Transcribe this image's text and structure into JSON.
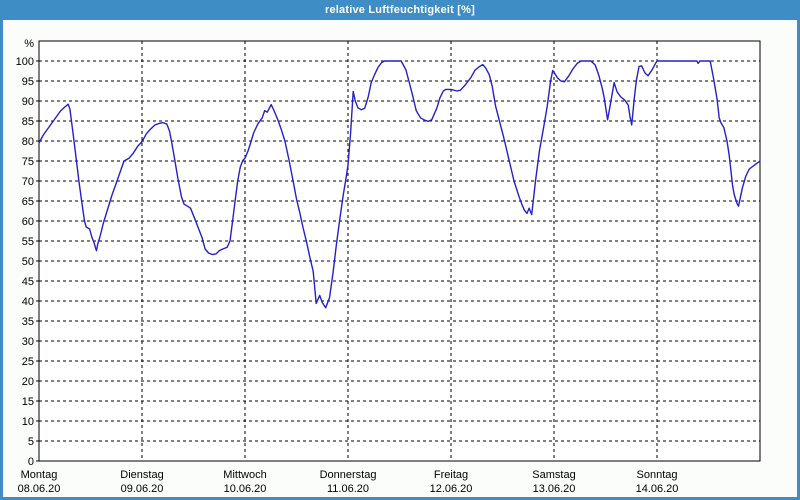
{
  "window": {
    "title": "relative Luftfeuchtigkeit [%]"
  },
  "chart_data": {
    "type": "line",
    "title": "relative Luftfeuchtigkeit [%]",
    "unit_label": "%",
    "legend": "none",
    "grid": "dashed",
    "y_axis": {
      "min": 0,
      "max": 105,
      "tick_step": 5
    },
    "y_ticks": [
      0,
      5,
      10,
      15,
      20,
      25,
      30,
      35,
      40,
      45,
      50,
      55,
      60,
      65,
      70,
      75,
      80,
      85,
      90,
      95,
      100
    ],
    "x_axis_range_hours": [
      0,
      168
    ],
    "x_labels": [
      {
        "day": "Montag",
        "date": "08.06.20",
        "hour": 0
      },
      {
        "day": "Dienstag",
        "date": "09.06.20",
        "hour": 24
      },
      {
        "day": "Mittwoch",
        "date": "10.06.20",
        "hour": 48
      },
      {
        "day": "Donnerstag",
        "date": "11.06.20",
        "hour": 72
      },
      {
        "day": "Freitag",
        "date": "12.06.20",
        "hour": 96
      },
      {
        "day": "Samstag",
        "date": "13.06.20",
        "hour": 120
      },
      {
        "day": "Sonntag",
        "date": "14.06.20",
        "hour": 144
      }
    ],
    "colors": {
      "titlebar": "#3e8ec5",
      "frame": "#3e8ec5",
      "background": "#fbfdfa",
      "plot_background": "#ffffff",
      "grid": "#000000",
      "axis": "#000000",
      "text": "#000000",
      "line": "#2222c8"
    },
    "series": [
      {
        "name": "relative Luftfeuchtigkeit",
        "points": [
          [
            0,
            79.5
          ],
          [
            1,
            81.5
          ],
          [
            2,
            83
          ],
          [
            3,
            84.5
          ],
          [
            4,
            86
          ],
          [
            5,
            87.5
          ],
          [
            6,
            88.5
          ],
          [
            6.8,
            89.2
          ],
          [
            7.2,
            88
          ],
          [
            7.8,
            83
          ],
          [
            8.5,
            77
          ],
          [
            9.3,
            70
          ],
          [
            10,
            64.5
          ],
          [
            10.6,
            60
          ],
          [
            11,
            58.5
          ],
          [
            11.8,
            58
          ],
          [
            12.3,
            56
          ],
          [
            12.9,
            54.3
          ],
          [
            13.2,
            53.2
          ],
          [
            13.4,
            52.6
          ],
          [
            13.7,
            54.3
          ],
          [
            14.2,
            56
          ],
          [
            15,
            59.5
          ],
          [
            16,
            63
          ],
          [
            17,
            66.5
          ],
          [
            18,
            69.5
          ],
          [
            19,
            72.5
          ],
          [
            19.8,
            75
          ],
          [
            21,
            75.7
          ],
          [
            22,
            77
          ],
          [
            23,
            78.7
          ],
          [
            24,
            79.8
          ],
          [
            25,
            81.8
          ],
          [
            26,
            83
          ],
          [
            27,
            84
          ],
          [
            28,
            84.4
          ],
          [
            28.9,
            84.6
          ],
          [
            29.8,
            84.2
          ],
          [
            30.4,
            82.5
          ],
          [
            30.9,
            79.8
          ],
          [
            31.6,
            75.5
          ],
          [
            32.4,
            70.5
          ],
          [
            33.2,
            66
          ],
          [
            33.8,
            64.2
          ],
          [
            34.6,
            63.7
          ],
          [
            35.3,
            63.2
          ],
          [
            36.2,
            60.8
          ],
          [
            37.2,
            58
          ],
          [
            38,
            55.8
          ],
          [
            38.7,
            53
          ],
          [
            39.5,
            52
          ],
          [
            40.5,
            51.6
          ],
          [
            41.3,
            51.8
          ],
          [
            42,
            52.6
          ],
          [
            42.8,
            53
          ],
          [
            43.8,
            53.4
          ],
          [
            44.5,
            55
          ],
          [
            45.1,
            60
          ],
          [
            45.7,
            65
          ],
          [
            46.3,
            70
          ],
          [
            46.9,
            73.5
          ],
          [
            47.5,
            75.2
          ],
          [
            48,
            75.7
          ],
          [
            48.7,
            77.5
          ],
          [
            49.3,
            79.5
          ],
          [
            50,
            82
          ],
          [
            51,
            84.3
          ],
          [
            52,
            85.8
          ],
          [
            52.6,
            87.6
          ],
          [
            53.2,
            87.2
          ],
          [
            54.1,
            89.1
          ],
          [
            54.8,
            87.5
          ],
          [
            55.7,
            85.2
          ],
          [
            56.5,
            82.7
          ],
          [
            57.3,
            80
          ],
          [
            58.2,
            75.5
          ],
          [
            59.2,
            70
          ],
          [
            60,
            65.5
          ],
          [
            60.7,
            62.4
          ],
          [
            61.5,
            58.5
          ],
          [
            62.3,
            54.9
          ],
          [
            63.1,
            51
          ],
          [
            63.9,
            47.4
          ],
          [
            64.6,
            39.4
          ],
          [
            65.4,
            41.4
          ],
          [
            66,
            39.6
          ],
          [
            66.8,
            38.3
          ],
          [
            67.7,
            40.8
          ],
          [
            68.5,
            47
          ],
          [
            69.3,
            54.1
          ],
          [
            70.1,
            60.5
          ],
          [
            70.9,
            66.6
          ],
          [
            71.5,
            70.5
          ],
          [
            72,
            74
          ],
          [
            72.6,
            82
          ],
          [
            73.2,
            92.4
          ],
          [
            73.7,
            90
          ],
          [
            74.3,
            88.3
          ],
          [
            75.1,
            87.8
          ],
          [
            75.9,
            88.2
          ],
          [
            76.7,
            91
          ],
          [
            77.4,
            94.6
          ],
          [
            78.2,
            96.6
          ],
          [
            79,
            98.4
          ],
          [
            79.8,
            99.6
          ],
          [
            80.5,
            100
          ],
          [
            84.4,
            100
          ],
          [
            85.5,
            97.8
          ],
          [
            86.3,
            94.5
          ],
          [
            87.1,
            91.2
          ],
          [
            87.9,
            87.6
          ],
          [
            88.9,
            85.8
          ],
          [
            89.9,
            85.2
          ],
          [
            90.7,
            84.9
          ],
          [
            91.5,
            85.3
          ],
          [
            92.7,
            88.2
          ],
          [
            93.4,
            90.7
          ],
          [
            94.2,
            92.5
          ],
          [
            94.8,
            92.9
          ],
          [
            96,
            92.9
          ],
          [
            97.4,
            92.5
          ],
          [
            98.2,
            92.7
          ],
          [
            99.3,
            94
          ],
          [
            100.6,
            95.8
          ],
          [
            101.6,
            97.7
          ],
          [
            102.6,
            98.6
          ],
          [
            103.4,
            99.1
          ],
          [
            104.1,
            98.2
          ],
          [
            104.9,
            96.6
          ],
          [
            105.6,
            93.7
          ],
          [
            106.4,
            88.7
          ],
          [
            107.6,
            83.7
          ],
          [
            108.4,
            80.4
          ],
          [
            109.5,
            75.4
          ],
          [
            110.7,
            69.9
          ],
          [
            111.8,
            66.3
          ],
          [
            112.5,
            64.2
          ],
          [
            113.1,
            62.7
          ],
          [
            113.7,
            61.9
          ],
          [
            114.2,
            63.2
          ],
          [
            114.8,
            61.6
          ],
          [
            115.7,
            70
          ],
          [
            116.6,
            77.5
          ],
          [
            117.6,
            83.5
          ],
          [
            118.4,
            88.5
          ],
          [
            119.2,
            95
          ],
          [
            119.7,
            97.6
          ],
          [
            120,
            97.2
          ],
          [
            120.8,
            95.8
          ],
          [
            121.6,
            95
          ],
          [
            122.4,
            94.8
          ],
          [
            123.4,
            96.2
          ],
          [
            124.4,
            98
          ],
          [
            125.4,
            99.4
          ],
          [
            126.3,
            100
          ],
          [
            128.6,
            100
          ],
          [
            129.6,
            99
          ],
          [
            130.4,
            96.6
          ],
          [
            131.2,
            93.3
          ],
          [
            131.7,
            90.8
          ],
          [
            132.1,
            88
          ],
          [
            132.5,
            85.3
          ],
          [
            133.2,
            89.5
          ],
          [
            134,
            94.6
          ],
          [
            134.7,
            92.3
          ],
          [
            135.5,
            91.1
          ],
          [
            136.5,
            90.2
          ],
          [
            137.3,
            89
          ],
          [
            137.7,
            86.1
          ],
          [
            138.1,
            84
          ],
          [
            138.7,
            90.7
          ],
          [
            139.2,
            95.2
          ],
          [
            139.8,
            98.6
          ],
          [
            140.4,
            98.8
          ],
          [
            141.2,
            97
          ],
          [
            141.9,
            96.3
          ],
          [
            142.8,
            97.7
          ],
          [
            143.6,
            99.3
          ],
          [
            144,
            100
          ],
          [
            145,
            100
          ],
          [
            153.3,
            100
          ],
          [
            153.6,
            99.4
          ],
          [
            154,
            100
          ],
          [
            156.4,
            100
          ],
          [
            157.2,
            95.6
          ],
          [
            158,
            90.4
          ],
          [
            158.5,
            85.8
          ],
          [
            158.9,
            84.6
          ],
          [
            159.6,
            83.3
          ],
          [
            160.3,
            80
          ],
          [
            160.8,
            76.6
          ],
          [
            161.2,
            72.9
          ],
          [
            161.6,
            69
          ],
          [
            162,
            66.5
          ],
          [
            162.7,
            64.2
          ],
          [
            163,
            63.7
          ],
          [
            163.9,
            68.3
          ],
          [
            164.7,
            71.2
          ],
          [
            165.5,
            73
          ],
          [
            167,
            74.2
          ],
          [
            168,
            75
          ]
        ]
      }
    ]
  }
}
